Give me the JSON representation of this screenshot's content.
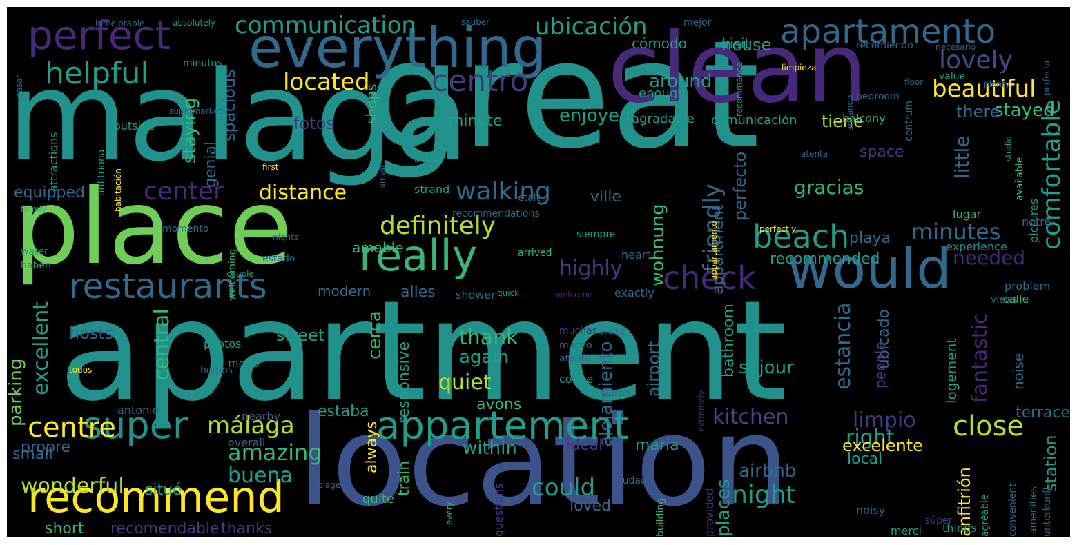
{
  "wordcloud": {
    "background": "#000000",
    "palette": {
      "purple": "#482878",
      "indigo": "#443a83",
      "blue": "#31688e",
      "slate": "#3e4a89",
      "teal": "#21918c",
      "cyan": "#1f9e89",
      "green": "#35b779",
      "lime": "#6ece58",
      "yellowgreen": "#b5de2b",
      "yellow": "#fde725"
    },
    "words": [
      {
        "text": "apartment",
        "color": "#21918c"
      },
      {
        "text": "malaga",
        "color": "#21918c"
      },
      {
        "text": "great",
        "color": "#21918c"
      },
      {
        "text": "location",
        "color": "#3b528b"
      },
      {
        "text": "place",
        "color": "#6ece58"
      },
      {
        "text": "clean",
        "color": "#482878"
      },
      {
        "text": "everything",
        "color": "#31688e"
      },
      {
        "text": "perfect",
        "color": "#482878"
      },
      {
        "text": "would",
        "color": "#31688e"
      },
      {
        "text": "really",
        "color": "#35b779"
      },
      {
        "text": "appartement",
        "color": "#1f9e89"
      },
      {
        "text": "recommend",
        "color": "#fde725"
      },
      {
        "text": "super",
        "color": "#21918c"
      },
      {
        "text": "restaurants",
        "color": "#31688e"
      },
      {
        "text": "beach",
        "color": "#1f9e89"
      },
      {
        "text": "check",
        "color": "#482878"
      },
      {
        "text": "apartamento",
        "color": "#31688e"
      },
      {
        "text": "comfortable",
        "color": "#1f9e89"
      },
      {
        "text": "communication",
        "color": "#1f9e89"
      },
      {
        "text": "ubicación",
        "color": "#1f9e89"
      },
      {
        "text": "helpful",
        "color": "#1f9e89"
      },
      {
        "text": "centro",
        "color": "#443a83"
      },
      {
        "text": "lovely",
        "color": "#3e4a89"
      },
      {
        "text": "located",
        "color": "#fde725"
      },
      {
        "text": "beautiful",
        "color": "#fde725"
      },
      {
        "text": "definitely",
        "color": "#b5de2b"
      },
      {
        "text": "walking",
        "color": "#31688e"
      },
      {
        "text": "center",
        "color": "#482878"
      },
      {
        "text": "distance",
        "color": "#fde725"
      },
      {
        "text": "highly",
        "color": "#443a83"
      },
      {
        "text": "minutes",
        "color": "#31688e"
      },
      {
        "text": "centre",
        "color": "#fde725"
      },
      {
        "text": "málaga",
        "color": "#b5de2b"
      },
      {
        "text": "amazing",
        "color": "#35b779"
      },
      {
        "text": "close",
        "color": "#b5de2b"
      },
      {
        "text": "night",
        "color": "#1f9e89"
      },
      {
        "text": "friendly",
        "color": "#31688e"
      },
      {
        "text": "kitchen",
        "color": "#3e4a89"
      },
      {
        "text": "limpio",
        "color": "#443a83"
      },
      {
        "text": "right",
        "color": "#1f9e89"
      },
      {
        "text": "could",
        "color": "#1f9e89"
      },
      {
        "text": "buena",
        "color": "#1f9e89"
      },
      {
        "text": "wonderful",
        "color": "#b5de2b"
      },
      {
        "text": "excellent",
        "color": "#1f9e89"
      },
      {
        "text": "parking",
        "color": "#6ece58"
      },
      {
        "text": "central",
        "color": "#35b779"
      },
      {
        "text": "quiet",
        "color": "#b5de2b"
      },
      {
        "text": "thank",
        "color": "#35b779"
      },
      {
        "text": "again",
        "color": "#1f9e89"
      },
      {
        "text": "cerca",
        "color": "#35b779"
      },
      {
        "text": "needed",
        "color": "#482878"
      },
      {
        "text": "wohnung",
        "color": "#35b779"
      },
      {
        "text": "stayed",
        "color": "#35b779"
      },
      {
        "text": "there",
        "color": "#31688e"
      },
      {
        "text": "tiene",
        "color": "#b5de2b"
      },
      {
        "text": "gracias",
        "color": "#35b779"
      },
      {
        "text": "little",
        "color": "#31688e"
      },
      {
        "text": "enjoyed",
        "color": "#1f9e89"
      },
      {
        "text": "minute",
        "color": "#1f9e89"
      },
      {
        "text": "staying",
        "color": "#35b779"
      },
      {
        "text": "spacious",
        "color": "#31688e"
      },
      {
        "text": "genial",
        "color": "#31688e"
      },
      {
        "text": "fotos",
        "color": "#443a83"
      },
      {
        "text": "around",
        "color": "#1f9e89"
      },
      {
        "text": "house",
        "color": "#1f9e89"
      },
      {
        "text": "cómodo",
        "color": "#1f9e89"
      },
      {
        "text": "visit",
        "color": "#1f9e89"
      },
      {
        "text": "equipped",
        "color": "#31688e"
      },
      {
        "text": "space",
        "color": "#443a83"
      },
      {
        "text": "perfecto",
        "color": "#31688e"
      },
      {
        "text": "appartment",
        "color": "#31688e"
      },
      {
        "text": "recommended",
        "color": "#1f9e89"
      },
      {
        "text": "playa",
        "color": "#31688e"
      },
      {
        "text": "alles",
        "color": "#31688e"
      },
      {
        "text": "modern",
        "color": "#31688e"
      },
      {
        "text": "amable",
        "color": "#35b779"
      },
      {
        "text": "estancia",
        "color": "#31688e"
      },
      {
        "text": "ubicado",
        "color": "#31688e"
      },
      {
        "text": "people",
        "color": "#443a83"
      },
      {
        "text": "fantastic",
        "color": "#482878"
      },
      {
        "text": "logement",
        "color": "#1f9e89"
      },
      {
        "text": "noise",
        "color": "#31688e"
      },
      {
        "text": "terrace",
        "color": "#31688e"
      },
      {
        "text": "station",
        "color": "#1f9e89"
      },
      {
        "text": "excelente",
        "color": "#fde725"
      },
      {
        "text": "anfitrión",
        "color": "#fde725"
      },
      {
        "text": "local",
        "color": "#1f9e89"
      },
      {
        "text": "airbnb",
        "color": "#31688e"
      },
      {
        "text": "places",
        "color": "#1f9e89"
      },
      {
        "text": "séjour",
        "color": "#1f9e89"
      },
      {
        "text": "bathroom",
        "color": "#1f9e89"
      },
      {
        "text": "airport",
        "color": "#31688e"
      },
      {
        "text": "alojamiento",
        "color": "#31688e"
      },
      {
        "text": "responsive",
        "color": "#1f9e89"
      },
      {
        "text": "street",
        "color": "#1f9e89"
      },
      {
        "text": "hosts",
        "color": "#31688e"
      },
      {
        "text": "within",
        "color": "#1f9e89"
      },
      {
        "text": "ideal",
        "color": "#443a83"
      },
      {
        "text": "maria",
        "color": "#1f9e89"
      },
      {
        "text": "always",
        "color": "#fde725"
      },
      {
        "text": "train",
        "color": "#35b779"
      },
      {
        "text": "quite",
        "color": "#35b779"
      },
      {
        "text": "loved",
        "color": "#31688e"
      },
      {
        "text": "situé",
        "color": "#1f9e89"
      },
      {
        "text": "propre",
        "color": "#31688e"
      },
      {
        "text": "small",
        "color": "#31688e"
      },
      {
        "text": "short",
        "color": "#35b779"
      },
      {
        "text": "recomendable",
        "color": "#443a83"
      },
      {
        "text": "thanks",
        "color": "#443a83"
      },
      {
        "text": "estaba",
        "color": "#1f9e89"
      },
      {
        "text": "avons",
        "color": "#35b779"
      },
      {
        "text": "shops",
        "color": "#35b779"
      },
      {
        "text": "agradable",
        "color": "#1f9e89"
      },
      {
        "text": "comunicación",
        "color": "#1f9e89"
      },
      {
        "text": "balcony",
        "color": "#35b779"
      },
      {
        "text": "enough",
        "color": "#1f9e89"
      },
      {
        "text": "ville",
        "color": "#31688e"
      },
      {
        "text": "shower",
        "color": "#31688e"
      },
      {
        "text": "exactly",
        "color": "#31688e"
      },
      {
        "text": "heart",
        "color": "#31688e"
      },
      {
        "text": "experience",
        "color": "#21918c"
      },
      {
        "text": "problem",
        "color": "#31688e"
      },
      {
        "text": "views",
        "color": "#31688e"
      },
      {
        "text": "calle",
        "color": "#35b779"
      },
      {
        "text": "lugar",
        "color": "#35b779"
      },
      {
        "text": "pictures",
        "color": "#1f9e89"
      },
      {
        "text": "available",
        "color": "#35b779"
      },
      {
        "text": "notre",
        "color": "#31688e"
      },
      {
        "text": "photos",
        "color": "#1f9e89"
      },
      {
        "text": "molto",
        "color": "#1f9e89"
      },
      {
        "text": "hemos",
        "color": "#31688e"
      },
      {
        "text": "coffee",
        "color": "#1f9e89"
      },
      {
        "text": "mucho",
        "color": "#31688e"
      },
      {
        "text": "muchas",
        "color": "#443a83"
      },
      {
        "text": "atento",
        "color": "#31688e"
      },
      {
        "text": "nicht",
        "color": "#31688e"
      },
      {
        "text": "extremely",
        "color": "#482878"
      },
      {
        "text": "waren",
        "color": "#31688e"
      },
      {
        "text": "antonio",
        "color": "#31688e"
      },
      {
        "text": "nearby",
        "color": "#31688e"
      },
      {
        "text": "overall",
        "color": "#31688e"
      },
      {
        "text": "ciudad",
        "color": "#31688e"
      },
      {
        "text": "every",
        "color": "#35b779"
      },
      {
        "text": "questions",
        "color": "#443a83"
      },
      {
        "text": "building",
        "color": "#35b779"
      },
      {
        "text": "provided",
        "color": "#443a83"
      },
      {
        "text": "noisy",
        "color": "#31688e"
      },
      {
        "text": "súper",
        "color": "#443a83"
      },
      {
        "text": "merci",
        "color": "#1f9e89"
      },
      {
        "text": "things",
        "color": "#1f9e89"
      },
      {
        "text": "agréable",
        "color": "#1f9e89"
      },
      {
        "text": "convenient",
        "color": "#31688e"
      },
      {
        "text": "amenities",
        "color": "#31688e"
      },
      {
        "text": "unterkunft",
        "color": "#31688e"
      },
      {
        "text": "plage",
        "color": "#31688e"
      },
      {
        "text": "minutos",
        "color": "#1f9e89"
      },
      {
        "text": "supermarket",
        "color": "#31688e"
      },
      {
        "text": "outside",
        "color": "#1f9e89"
      },
      {
        "text": "attractions",
        "color": "#1f9e89"
      },
      {
        "text": "anfitriona",
        "color": "#1f9e89"
      },
      {
        "text": "habitación",
        "color": "#fde725"
      },
      {
        "text": "better",
        "color": "#1f9e89"
      },
      {
        "text": "first",
        "color": "#fde725"
      },
      {
        "text": "arrival",
        "color": "#31688e"
      },
      {
        "text": "strand",
        "color": "#1f9e89"
      },
      {
        "text": "recommendations",
        "color": "#31688e"
      },
      {
        "text": "momento",
        "color": "#31688e"
      },
      {
        "text": "siempre",
        "color": "#1f9e89"
      },
      {
        "text": "perfectly",
        "color": "#fde725"
      },
      {
        "text": "arrived",
        "color": "#35b779"
      },
      {
        "text": "appartamento",
        "color": "#fde725"
      },
      {
        "text": "welcome",
        "color": "#482878"
      },
      {
        "text": "welcoming",
        "color": "#35b779"
      },
      {
        "text": "quick",
        "color": "#1f9e89"
      },
      {
        "text": "estado",
        "color": "#31688e"
      },
      {
        "text": "couple",
        "color": "#1f9e89"
      },
      {
        "text": "water",
        "color": "#1f9e89"
      },
      {
        "text": "haben",
        "color": "#1f9e89"
      },
      {
        "text": "family",
        "color": "#35b779"
      },
      {
        "text": "était",
        "color": "#31688e"
      },
      {
        "text": "nights",
        "color": "#31688e"
      },
      {
        "text": "todos",
        "color": "#fde725"
      },
      {
        "text": "inmejorable",
        "color": "#31688e"
      },
      {
        "text": "sauber",
        "color": "#31688e"
      },
      {
        "text": "mejor",
        "color": "#31688e"
      },
      {
        "text": "absolutely",
        "color": "#1f9e89"
      },
      {
        "text": "pasar",
        "color": "#31688e"
      },
      {
        "text": "limpieza",
        "color": "#fde725"
      },
      {
        "text": "recommande",
        "color": "#1f9e89"
      },
      {
        "text": "recomiendo",
        "color": "#31688e"
      },
      {
        "text": "necesario",
        "color": "#31688e"
      },
      {
        "text": "perfecta",
        "color": "#31688e"
      },
      {
        "text": "value",
        "color": "#1f9e89"
      },
      {
        "text": "centrum",
        "color": "#31688e"
      },
      {
        "text": "bedroom",
        "color": "#31688e"
      },
      {
        "text": "andando",
        "color": "#31688e"
      },
      {
        "text": "floor",
        "color": "#31688e"
      },
      {
        "text": "plenty",
        "color": "#31688e"
      },
      {
        "text": "studio",
        "color": "#1f9e89"
      },
      {
        "text": "atenta",
        "color": "#31688e"
      }
    ]
  }
}
